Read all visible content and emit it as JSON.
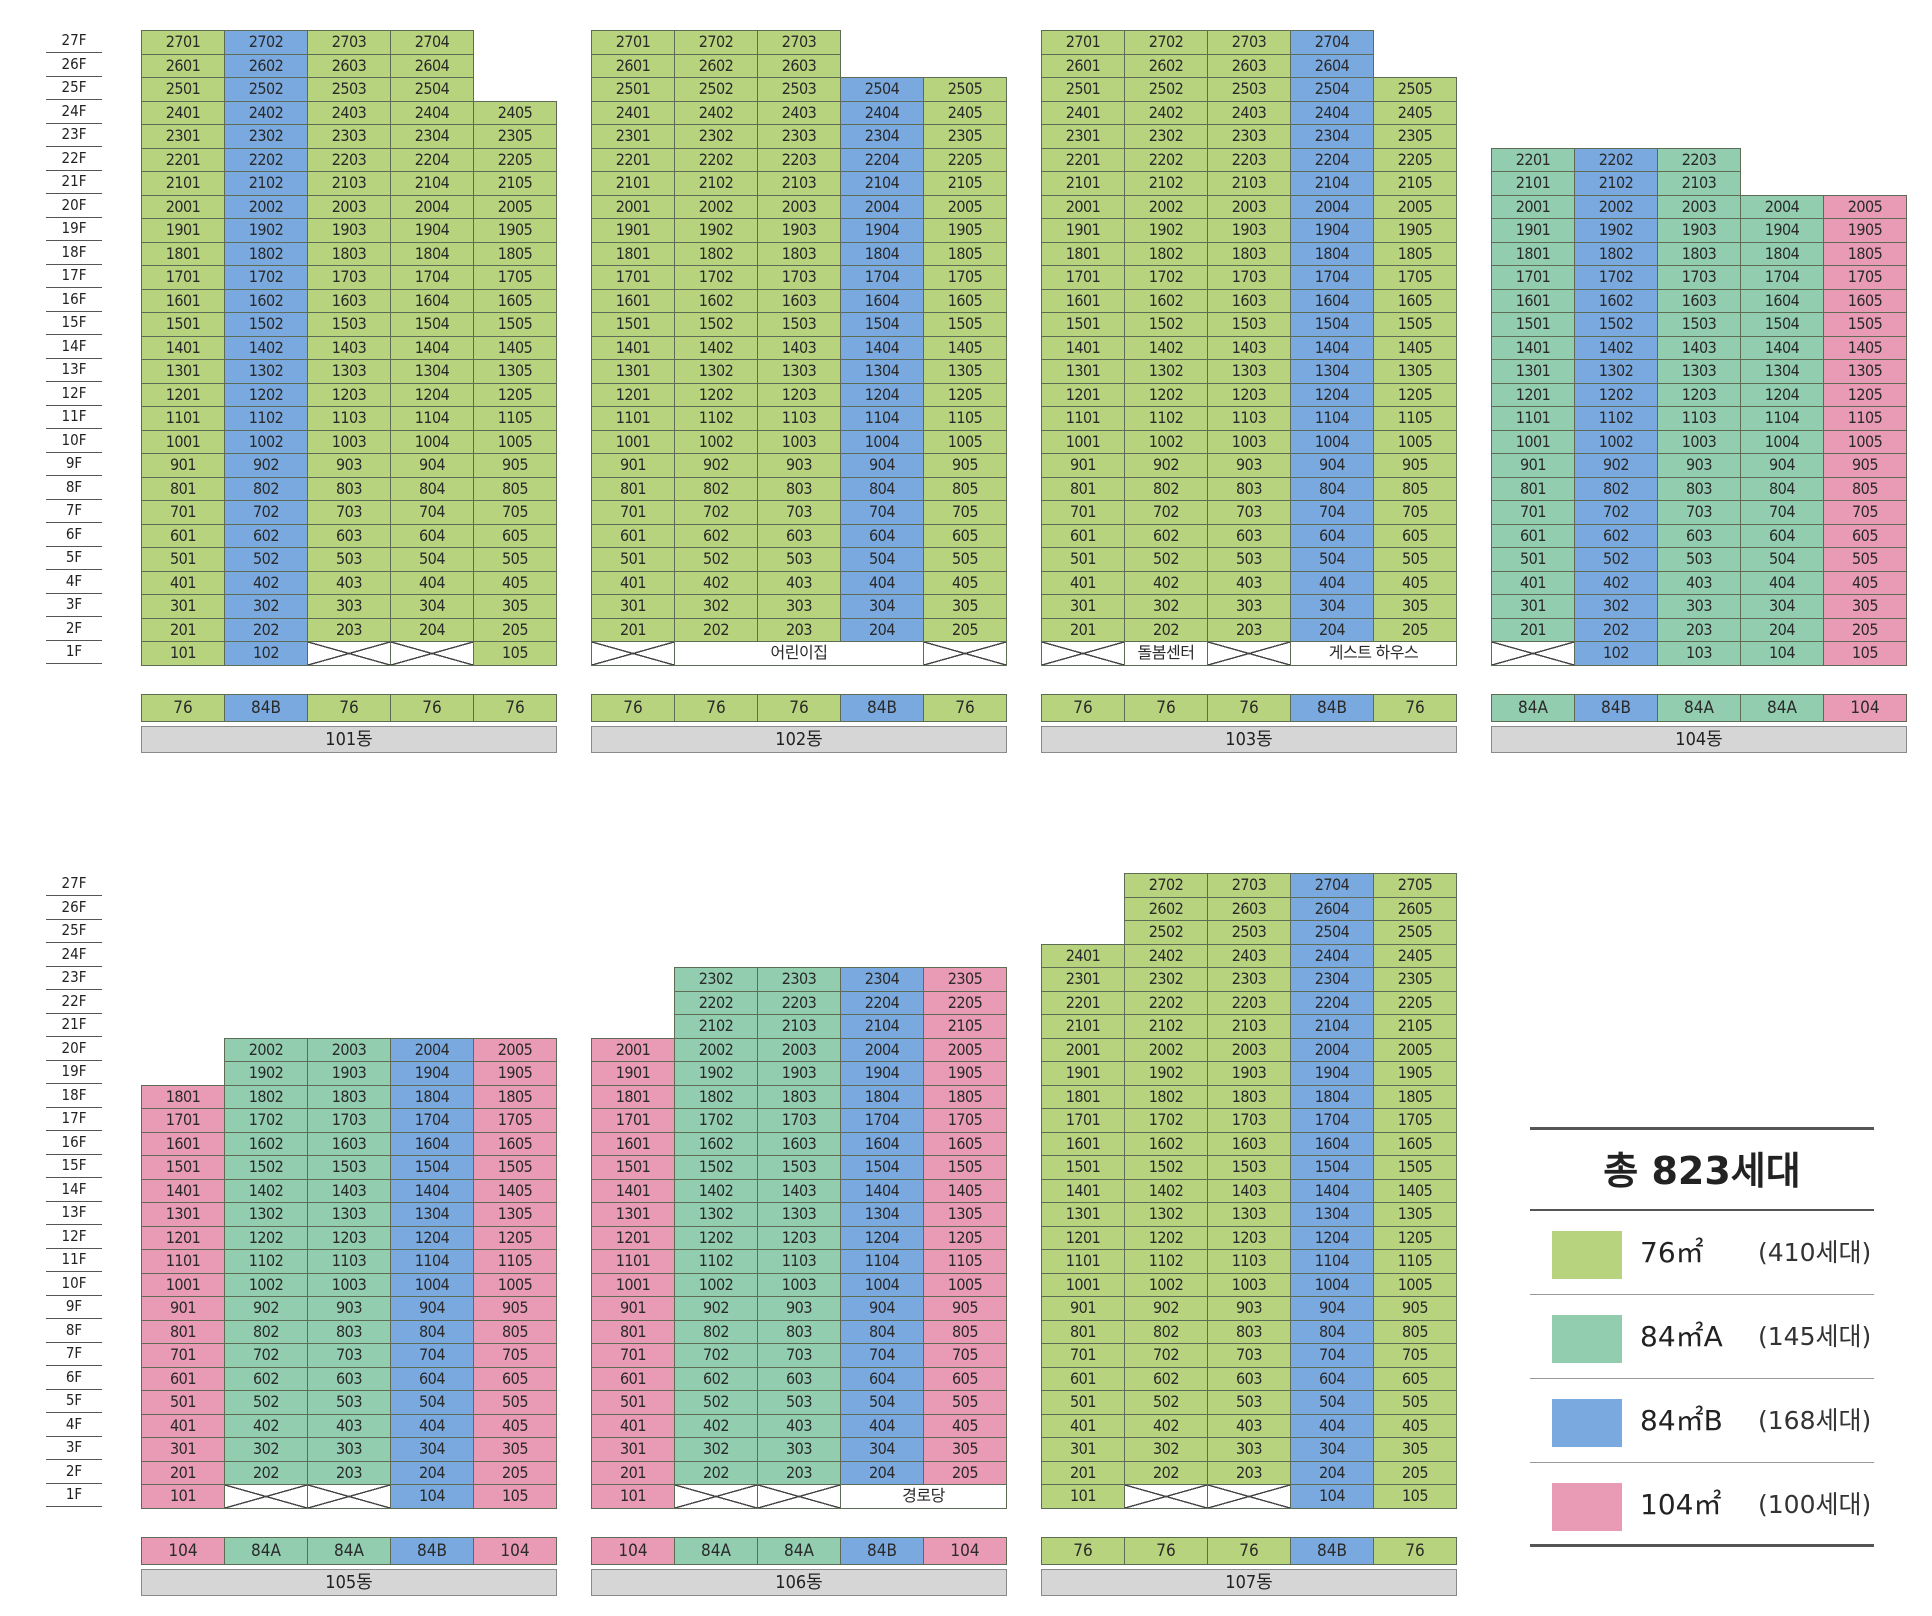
{
  "colors": {
    "76": "#b8d37d",
    "84A": "#92cdb0",
    "84B": "#7aa9df",
    "104": "#e99ab5"
  },
  "floor_labels": [
    "27F",
    "26F",
    "25F",
    "24F",
    "23F",
    "22F",
    "21F",
    "20F",
    "19F",
    "18F",
    "17F",
    "16F",
    "15F",
    "14F",
    "13F",
    "12F",
    "11F",
    "10F",
    "9F",
    "8F",
    "7F",
    "6F",
    "5F",
    "4F",
    "3F",
    "2F",
    "1F"
  ],
  "buildings": [
    {
      "name": "101동",
      "columns": [
        {
          "type": "76",
          "top_floor": 27,
          "first_floor": "101"
        },
        {
          "type": "84B",
          "top_floor": 27,
          "first_floor": "102"
        },
        {
          "type": "76",
          "top_floor": 27,
          "first_floor": "__X__"
        },
        {
          "type": "76",
          "top_floor": 27,
          "first_floor": "__X__"
        },
        {
          "type": "76",
          "top_floor": 24,
          "first_floor": "105"
        }
      ],
      "first_floor_facility": null,
      "types": [
        "76",
        "84B",
        "76",
        "76",
        "76"
      ]
    },
    {
      "name": "102동",
      "columns": [
        {
          "type": "76",
          "top_floor": 27,
          "first_floor": "__X__"
        },
        {
          "type": "76",
          "top_floor": 27,
          "first_floor": "__F__"
        },
        {
          "type": "76",
          "top_floor": 27,
          "first_floor": "__F__"
        },
        {
          "type": "84B",
          "top_floor": 25,
          "first_floor": "__F__"
        },
        {
          "type": "76",
          "top_floor": 25,
          "first_floor": "__X__"
        }
      ],
      "first_floor_facility": {
        "label": "어린이집",
        "start": 1,
        "span": 3
      },
      "types": [
        "76",
        "76",
        "76",
        "84B",
        "76"
      ]
    },
    {
      "name": "103동",
      "columns": [
        {
          "type": "76",
          "top_floor": 27,
          "first_floor": "__X__"
        },
        {
          "type": "76",
          "top_floor": 27,
          "first_floor": "__F__"
        },
        {
          "type": "76",
          "top_floor": 27,
          "first_floor": "__X__"
        },
        {
          "type": "84B",
          "top_floor": 27,
          "first_floor": "__G__"
        },
        {
          "type": "76",
          "top_floor": 25,
          "first_floor": "__G__"
        }
      ],
      "first_floor_facility": {
        "label": "돌봄센터",
        "start": 1,
        "span": 1
      },
      "second_facility": {
        "label": "게스트 하우스",
        "start": 3,
        "span": 2
      },
      "types": [
        "76",
        "76",
        "76",
        "84B",
        "76"
      ]
    },
    {
      "name": "104동",
      "columns": [
        {
          "type": "84A",
          "top_floor": 22,
          "first_floor": "__X__"
        },
        {
          "type": "84B",
          "top_floor": 22,
          "first_floor": "102"
        },
        {
          "type": "84A",
          "top_floor": 22,
          "first_floor": "103"
        },
        {
          "type": "84A",
          "top_floor": 20,
          "first_floor": "104"
        },
        {
          "type": "104",
          "top_floor": 20,
          "first_floor": "105"
        }
      ],
      "first_floor_facility": null,
      "types": [
        "84A",
        "84B",
        "84A",
        "84A",
        "104"
      ]
    },
    {
      "name": "105동",
      "columns": [
        {
          "type": "104",
          "top_floor": 18,
          "first_floor": "101"
        },
        {
          "type": "84A",
          "top_floor": 20,
          "first_floor": "__X__"
        },
        {
          "type": "84A",
          "top_floor": 20,
          "first_floor": "__X__"
        },
        {
          "type": "84B",
          "top_floor": 20,
          "first_floor": "104"
        },
        {
          "type": "104",
          "top_floor": 20,
          "first_floor": "105"
        }
      ],
      "first_floor_facility": null,
      "types": [
        "104",
        "84A",
        "84A",
        "84B",
        "104"
      ]
    },
    {
      "name": "106동",
      "columns": [
        {
          "type": "104",
          "top_floor": 20,
          "first_floor": "101"
        },
        {
          "type": "84A",
          "top_floor": 23,
          "first_floor": "__X__"
        },
        {
          "type": "84A",
          "top_floor": 23,
          "first_floor": "__X__"
        },
        {
          "type": "84B",
          "top_floor": 23,
          "first_floor": "__F__"
        },
        {
          "type": "104",
          "top_floor": 23,
          "first_floor": "__F__"
        }
      ],
      "first_floor_facility": {
        "label": "경로당",
        "start": 3,
        "span": 2
      },
      "types": [
        "104",
        "84A",
        "84A",
        "84B",
        "104"
      ]
    },
    {
      "name": "107동",
      "columns": [
        {
          "type": "76",
          "top_floor": 24,
          "first_floor": "101"
        },
        {
          "type": "76",
          "top_floor": 27,
          "first_floor": "__X__"
        },
        {
          "type": "76",
          "top_floor": 27,
          "first_floor": "__X__"
        },
        {
          "type": "84B",
          "top_floor": 27,
          "first_floor": "104"
        },
        {
          "type": "76",
          "top_floor": 27,
          "first_floor": "105"
        }
      ],
      "first_floor_facility": null,
      "types": [
        "76",
        "76",
        "76",
        "84B",
        "76"
      ]
    }
  ],
  "legend": {
    "total": "총 823세대",
    "items": [
      {
        "type": "76",
        "area": "76㎡",
        "count": "(410세대)"
      },
      {
        "type": "84A",
        "area": "84㎡A",
        "count": "(145세대)"
      },
      {
        "type": "84B",
        "area": "84㎡B",
        "count": "(168세대)"
      },
      {
        "type": "104",
        "area": "104㎡",
        "count": "(100세대)"
      }
    ]
  }
}
